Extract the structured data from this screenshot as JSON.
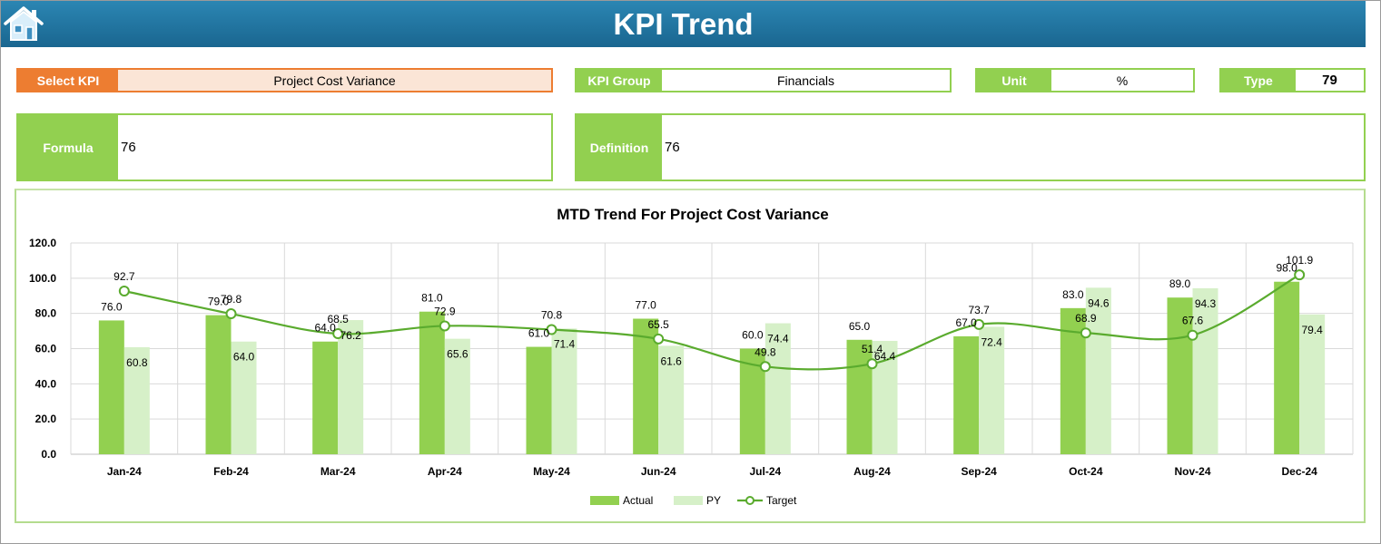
{
  "header": {
    "title": "KPI Trend",
    "home_icon": "home-icon"
  },
  "fields": {
    "select_kpi": {
      "label": "Select KPI",
      "value": "Project Cost Variance"
    },
    "kpi_group": {
      "label": "KPI Group",
      "value": "Financials"
    },
    "unit": {
      "label": "Unit",
      "value": "%"
    },
    "type": {
      "label": "Type",
      "value": "79"
    },
    "formula": {
      "label": "Formula",
      "value": "76"
    },
    "definition": {
      "label": "Definition",
      "value": "76"
    }
  },
  "colors": {
    "header": "#1f72a0",
    "accent_green": "#92d050",
    "select_orange": "#ed7d31",
    "select_fill": "#fbe5d6",
    "py_green": "#d6f0c8",
    "target_line": "#5aab2e"
  },
  "chart_data": {
    "type": "bar",
    "title": "MTD Trend For Project Cost Variance",
    "categories": [
      "Jan-24",
      "Feb-24",
      "Mar-24",
      "Apr-24",
      "May-24",
      "Jun-24",
      "Jul-24",
      "Aug-24",
      "Sep-24",
      "Oct-24",
      "Nov-24",
      "Dec-24"
    ],
    "series": [
      {
        "name": "Actual",
        "type": "bar",
        "values": [
          76.0,
          79.0,
          64.0,
          81.0,
          61.0,
          77.0,
          60.0,
          65.0,
          67.0,
          83.0,
          89.0,
          98.0
        ]
      },
      {
        "name": "PY",
        "type": "bar",
        "values": [
          60.8,
          64.0,
          76.2,
          65.6,
          71.4,
          61.6,
          74.4,
          64.4,
          72.4,
          94.6,
          94.3,
          79.4
        ]
      },
      {
        "name": "Target",
        "type": "line",
        "values": [
          92.7,
          79.8,
          68.5,
          72.9,
          70.8,
          65.5,
          49.8,
          51.4,
          73.7,
          68.9,
          67.6,
          101.9
        ]
      }
    ],
    "ylim": [
      0,
      120
    ],
    "yticks": [
      "0.0",
      "20.0",
      "40.0",
      "60.0",
      "80.0",
      "100.0",
      "120.0"
    ],
    "grid": true,
    "legend": "bottom"
  }
}
